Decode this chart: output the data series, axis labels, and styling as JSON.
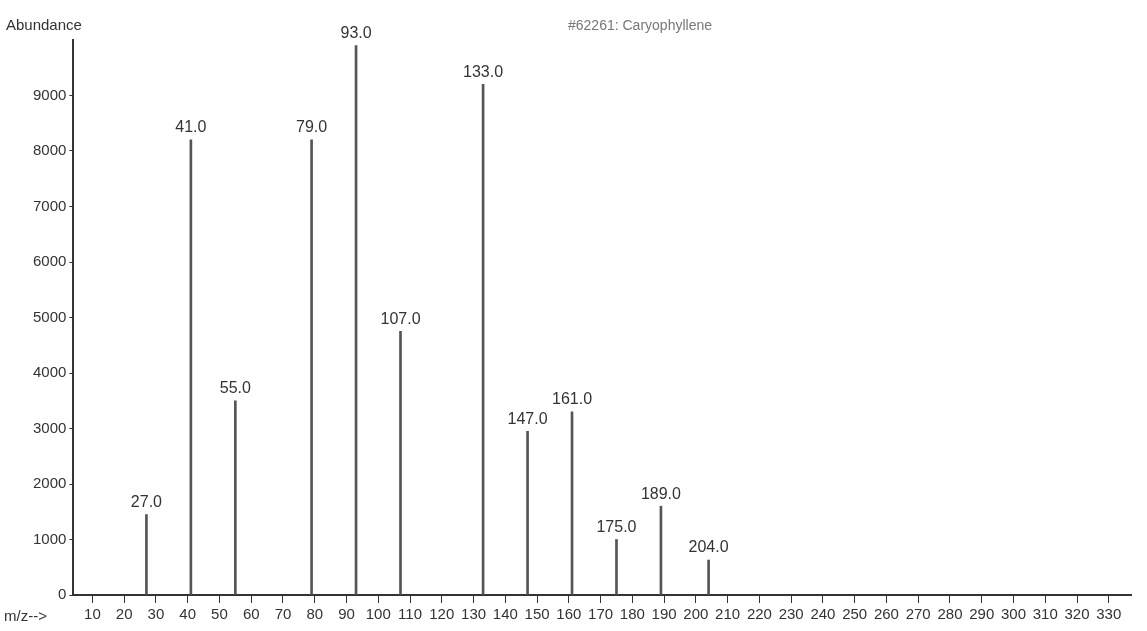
{
  "chart_data": {
    "type": "bar",
    "title": "#62261: Caryophyllene",
    "xlabel": "m/z-->",
    "ylabel": "Abundance",
    "x": [
      27,
      41,
      55,
      79,
      93,
      107,
      133,
      147,
      161,
      175,
      189,
      204
    ],
    "values": [
      1450,
      8200,
      3500,
      8200,
      9900,
      4750,
      9200,
      2950,
      3300,
      1000,
      1600,
      630
    ],
    "color": "#555555",
    "xlim": [
      4,
      337
    ],
    "xticks": [
      10,
      20,
      30,
      40,
      50,
      60,
      70,
      80,
      90,
      100,
      110,
      120,
      130,
      140,
      150,
      160,
      170,
      180,
      190,
      200,
      210,
      220,
      230,
      240,
      250,
      260,
      270,
      280,
      290,
      300,
      310,
      320,
      330
    ],
    "ylim": [
      0,
      10000
    ],
    "yticks": [
      0,
      1000,
      2000,
      3000,
      4000,
      5000,
      6000,
      7000,
      8000,
      9000
    ],
    "annotations": [
      {
        "text": "27.0",
        "x": 27,
        "y": 1450
      },
      {
        "text": "41.0",
        "x": 41,
        "y": 8200
      },
      {
        "text": "55.0",
        "x": 55,
        "y": 3500
      },
      {
        "text": "79.0",
        "x": 79,
        "y": 8200
      },
      {
        "text": "93.0",
        "x": 93,
        "y": 9900
      },
      {
        "text": "107.0",
        "x": 107,
        "y": 4750
      },
      {
        "text": "133.0",
        "x": 133,
        "y": 9200
      },
      {
        "text": "147.0",
        "x": 147,
        "y": 2950
      },
      {
        "text": "161.0",
        "x": 161,
        "y": 3300
      },
      {
        "text": "175.0",
        "x": 175,
        "y": 1000
      },
      {
        "text": "189.0",
        "x": 189,
        "y": 1600
      },
      {
        "text": "204.0",
        "x": 204,
        "y": 630
      }
    ],
    "grid": false,
    "legend": false
  }
}
